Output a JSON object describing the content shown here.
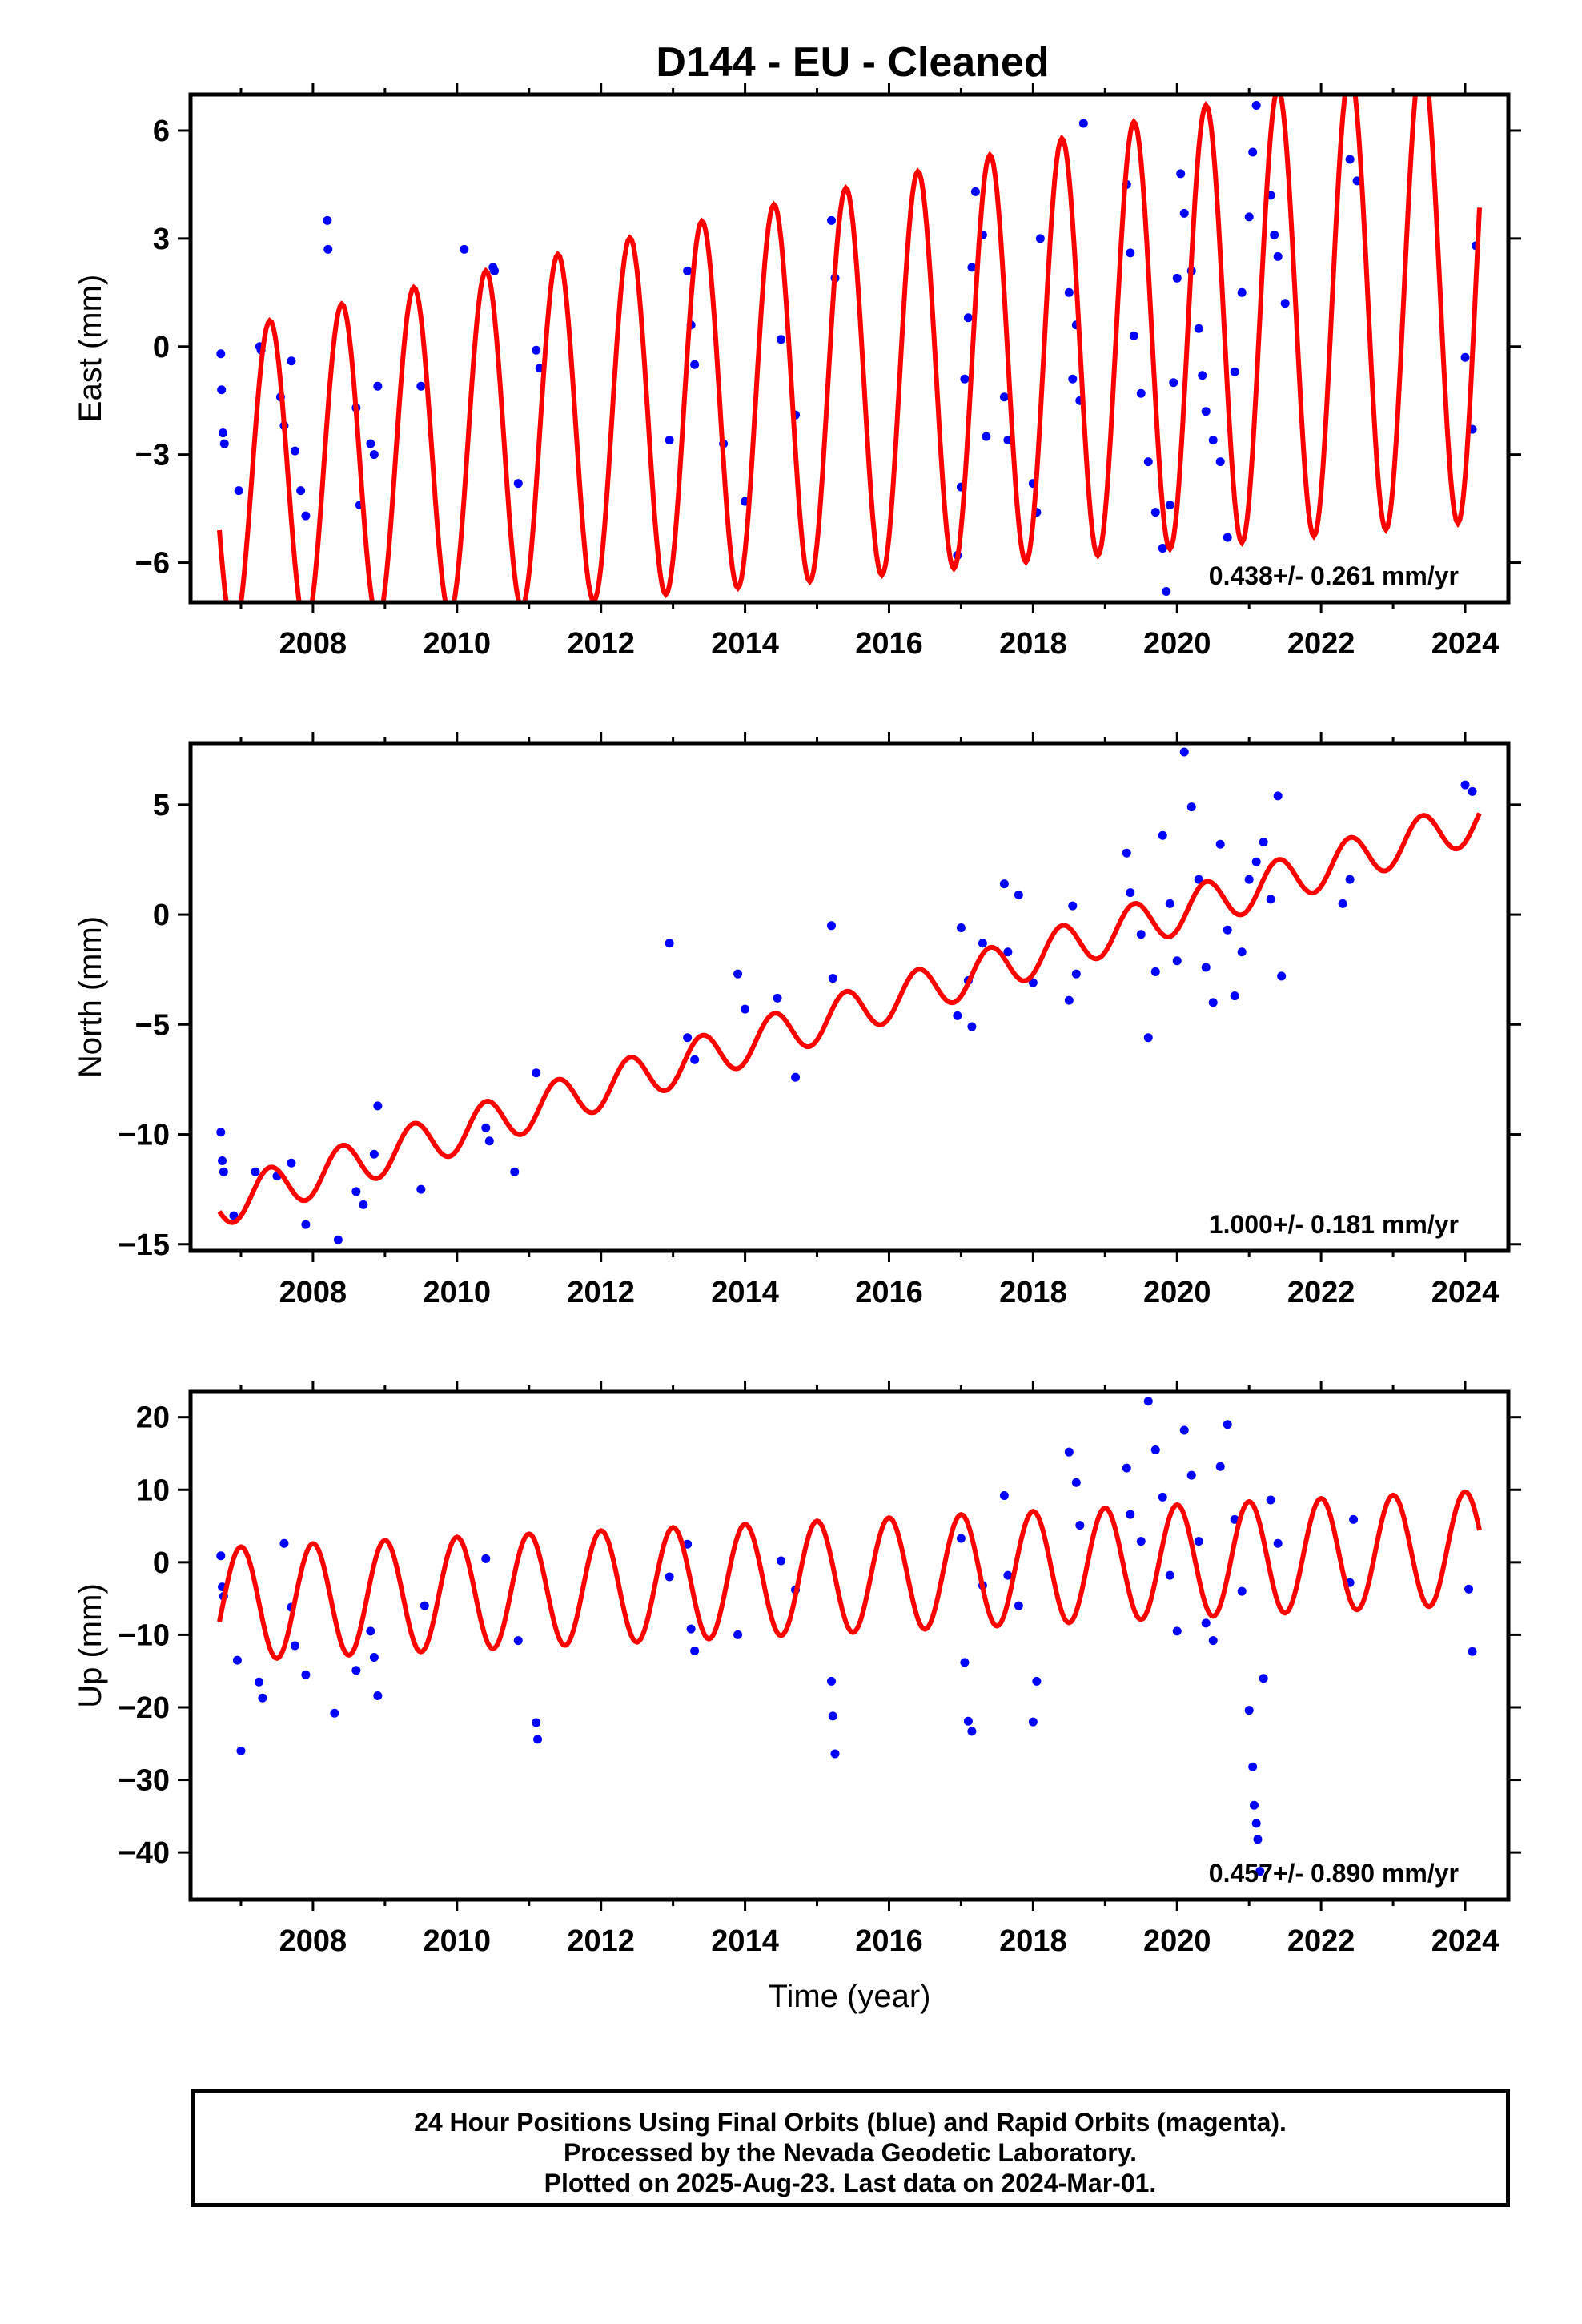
{
  "title": "D144  - EU - Cleaned",
  "footer": {
    "line1": "24 Hour Positions Using Final Orbits (blue) and Rapid Orbits (magenta).",
    "line2": "Processed by the Nevada Geodetic Laboratory.",
    "line3": "Plotted on 2025-Aug-23. Last data on 2024-Mar-01."
  },
  "colors": {
    "observations": "#0000ff",
    "model": "#ff0000",
    "frame": "#000000"
  },
  "chart_data": [
    {
      "type": "scatter",
      "ylabel": "East (mm)",
      "xlabel": "",
      "xlim": [
        2006.3,
        2024.6
      ],
      "ylim": [
        -7.1,
        7.0
      ],
      "xticks": [
        "2008",
        "2010",
        "2012",
        "2014",
        "2016",
        "2018",
        "2020",
        "2022",
        "2024"
      ],
      "yticks": [
        "6",
        "3",
        "0",
        "−3",
        "−6"
      ],
      "ytick_values": [
        6,
        3,
        0,
        -3,
        -6
      ],
      "rate": "0.438+/- 0.261 mm/yr",
      "model": {
        "amplitude": 4.2,
        "amplitude_growth": 0.14,
        "phase_year": 2007.4,
        "offset_start": -3.8,
        "offset_end": 1.8,
        "x_range": [
          2006.7,
          2024.2
        ]
      },
      "series": [
        {
          "name": "",
          "x": [
            2006.72,
            2006.73,
            2006.75,
            2006.77,
            2006.97,
            2007.26,
            2007.28,
            2007.55,
            2007.6,
            2007.7,
            2007.75,
            2007.83,
            2007.9,
            2008.2,
            2008.21,
            2008.6,
            2008.65,
            2008.8,
            2008.85,
            2008.9,
            2009.5,
            2010.1,
            2010.5,
            2010.52,
            2010.85,
            2011.1,
            2011.15,
            2012.95,
            2013.2,
            2013.25,
            2013.3,
            2013.7,
            2014.0,
            2014.5,
            2014.7,
            2015.2,
            2015.25,
            2016.95,
            2017.0,
            2017.05,
            2017.1,
            2017.15,
            2017.2,
            2017.3,
            2017.35,
            2017.6,
            2017.65,
            2018.0,
            2018.05,
            2018.1,
            2018.5,
            2018.55,
            2018.6,
            2018.65,
            2018.7,
            2019.3,
            2019.35,
            2019.4,
            2019.5,
            2019.6,
            2019.7,
            2019.8,
            2019.85,
            2019.9,
            2019.95,
            2020.0,
            2020.05,
            2020.1,
            2020.2,
            2020.3,
            2020.35,
            2020.4,
            2020.5,
            2020.6,
            2020.7,
            2020.8,
            2020.9,
            2021.0,
            2021.05,
            2021.1,
            2021.3,
            2021.35,
            2021.4,
            2021.5,
            2022.4,
            2022.5,
            2024.0,
            2024.1,
            2024.15
          ],
          "y": [
            -0.2,
            -1.2,
            -2.4,
            -2.7,
            -4.0,
            0.0,
            -0.1,
            -1.4,
            -2.2,
            -0.4,
            -2.9,
            -4.0,
            -4.7,
            3.5,
            2.7,
            -1.7,
            -4.4,
            -2.7,
            -3.0,
            -1.1,
            -1.1,
            2.7,
            2.2,
            2.1,
            -3.8,
            -0.1,
            -0.6,
            -2.6,
            2.1,
            0.6,
            -0.5,
            -2.7,
            -4.3,
            0.2,
            -1.9,
            3.5,
            1.9,
            -5.8,
            -3.9,
            -0.9,
            0.8,
            2.2,
            4.3,
            3.1,
            -2.5,
            -1.4,
            -2.6,
            -3.8,
            -4.6,
            3.0,
            1.5,
            -0.9,
            0.6,
            -1.5,
            6.2,
            4.5,
            2.6,
            0.3,
            -1.3,
            -3.2,
            -4.6,
            -5.6,
            -6.8,
            -4.4,
            -1.0,
            1.9,
            4.8,
            3.7,
            2.1,
            0.5,
            -0.8,
            -1.8,
            -2.6,
            -3.2,
            -5.3,
            -0.7,
            1.5,
            3.6,
            5.4,
            6.7,
            4.2,
            3.1,
            2.5,
            1.2,
            5.2,
            4.6,
            -0.3,
            -2.3,
            2.8
          ]
        }
      ]
    },
    {
      "type": "scatter",
      "ylabel": "North (mm)",
      "xlabel": "",
      "xlim": [
        2006.3,
        2024.6
      ],
      "ylim": [
        -15.3,
        7.8
      ],
      "xticks": [
        "2008",
        "2010",
        "2012",
        "2014",
        "2016",
        "2018",
        "2020",
        "2022",
        "2024"
      ],
      "yticks": [
        "5",
        "0",
        "−5",
        "−10",
        "−15"
      ],
      "ytick_values": [
        5,
        0,
        -5,
        -10,
        -15
      ],
      "rate": "1.000+/- 0.181 mm/yr",
      "model": {
        "amplitude": 1.0,
        "amplitude_growth": 0.0,
        "phase_year": 2007.4,
        "offset_start": -13.2,
        "offset_end": 4.3,
        "x_range": [
          2006.7,
          2024.2
        ]
      },
      "series": [
        {
          "name": "",
          "x": [
            2006.72,
            2006.74,
            2006.76,
            2006.9,
            2007.2,
            2007.5,
            2007.7,
            2007.9,
            2008.35,
            2008.6,
            2008.7,
            2008.85,
            2008.9,
            2009.5,
            2010.4,
            2010.45,
            2010.8,
            2011.1,
            2012.95,
            2013.2,
            2013.3,
            2013.9,
            2014.0,
            2014.45,
            2014.7,
            2015.2,
            2015.22,
            2016.95,
            2017.0,
            2017.1,
            2017.15,
            2017.3,
            2017.6,
            2017.65,
            2017.8,
            2018.0,
            2018.5,
            2018.55,
            2018.6,
            2019.3,
            2019.35,
            2019.5,
            2019.6,
            2019.7,
            2019.8,
            2019.9,
            2020.0,
            2020.1,
            2020.2,
            2020.3,
            2020.4,
            2020.5,
            2020.6,
            2020.7,
            2020.8,
            2020.9,
            2021.0,
            2021.1,
            2021.2,
            2021.3,
            2021.4,
            2021.45,
            2022.3,
            2022.4,
            2024.0,
            2024.1
          ],
          "y": [
            -9.9,
            -11.2,
            -11.7,
            -13.7,
            -11.7,
            -11.9,
            -11.3,
            -14.1,
            -14.8,
            -12.6,
            -13.2,
            -10.9,
            -8.7,
            -12.5,
            -9.7,
            -10.3,
            -11.7,
            -7.2,
            -1.3,
            -5.6,
            -6.6,
            -2.7,
            -4.3,
            -3.8,
            -7.4,
            -0.5,
            -2.9,
            -4.6,
            -0.6,
            -3.0,
            -5.1,
            -1.3,
            1.4,
            -1.7,
            0.9,
            -3.1,
            -3.9,
            0.4,
            -2.7,
            2.8,
            1.0,
            -0.9,
            -5.6,
            -2.6,
            3.6,
            0.5,
            -2.1,
            7.4,
            4.9,
            1.6,
            -2.4,
            -4.0,
            3.2,
            -0.7,
            -3.7,
            -1.7,
            1.6,
            2.4,
            3.3,
            0.7,
            5.4,
            -2.8,
            0.5,
            1.6,
            5.9,
            5.6
          ]
        }
      ]
    },
    {
      "type": "scatter",
      "ylabel": "Up (mm)",
      "xlabel": "Time (year)",
      "xlim": [
        2006.3,
        2024.6
      ],
      "ylim": [
        -46.5,
        23.5
      ],
      "xticks": [
        "2008",
        "2010",
        "2012",
        "2014",
        "2016",
        "2018",
        "2020",
        "2022",
        "2024"
      ],
      "yticks": [
        "20",
        "10",
        "0",
        "−10",
        "−20",
        "−30",
        "−40"
      ],
      "ytick_values": [
        20,
        10,
        0,
        -10,
        -20,
        -30,
        -40
      ],
      "rate": "0.457+/- 0.890 mm/yr",
      "model": {
        "amplitude": 7.8,
        "amplitude_growth": 0.0,
        "phase_year": 2007.0,
        "offset_start": -5.8,
        "offset_end": 2.0,
        "x_range": [
          2006.7,
          2024.2
        ]
      },
      "series": [
        {
          "name": "",
          "x": [
            2006.72,
            2006.74,
            2006.76,
            2006.95,
            2007.0,
            2007.25,
            2007.3,
            2007.6,
            2007.7,
            2007.75,
            2007.9,
            2008.3,
            2008.6,
            2008.8,
            2008.85,
            2008.9,
            2009.55,
            2010.4,
            2010.85,
            2011.1,
            2011.12,
            2012.95,
            2013.2,
            2013.25,
            2013.3,
            2013.9,
            2014.5,
            2014.7,
            2015.2,
            2015.22,
            2015.25,
            2017.0,
            2017.05,
            2017.1,
            2017.15,
            2017.3,
            2017.6,
            2017.65,
            2017.8,
            2018.0,
            2018.05,
            2018.5,
            2018.6,
            2018.65,
            2019.3,
            2019.35,
            2019.5,
            2019.6,
            2019.7,
            2019.8,
            2019.9,
            2020.0,
            2020.1,
            2020.2,
            2020.3,
            2020.4,
            2020.5,
            2020.6,
            2020.7,
            2020.8,
            2020.9,
            2021.0,
            2021.05,
            2021.07,
            2021.1,
            2021.12,
            2021.15,
            2021.2,
            2021.3,
            2021.4,
            2022.4,
            2022.45,
            2024.05,
            2024.1
          ],
          "y": [
            0.9,
            -3.4,
            -4.7,
            -13.5,
            -26.0,
            -16.5,
            -18.7,
            2.6,
            -6.2,
            -11.5,
            -15.5,
            -20.8,
            -14.9,
            -9.5,
            -13.1,
            -18.4,
            -6.0,
            0.5,
            -10.8,
            -22.1,
            -24.4,
            -2.0,
            2.5,
            -9.2,
            -12.2,
            -10.0,
            0.2,
            -3.8,
            -16.4,
            -21.2,
            -26.4,
            3.3,
            -13.8,
            -21.9,
            -23.3,
            -3.2,
            9.2,
            -1.8,
            -6.0,
            -22.0,
            -16.4,
            15.2,
            11.0,
            5.1,
            13.0,
            6.6,
            2.9,
            22.2,
            15.5,
            9.0,
            -1.8,
            -9.5,
            18.2,
            12.0,
            2.9,
            -8.4,
            -10.8,
            13.2,
            19.0,
            5.9,
            -4.0,
            -20.4,
            -28.2,
            -33.5,
            -36.0,
            -38.2,
            -42.6,
            -16.0,
            8.6,
            2.6,
            -2.8,
            5.9,
            -3.7,
            -12.3
          ]
        }
      ]
    }
  ]
}
